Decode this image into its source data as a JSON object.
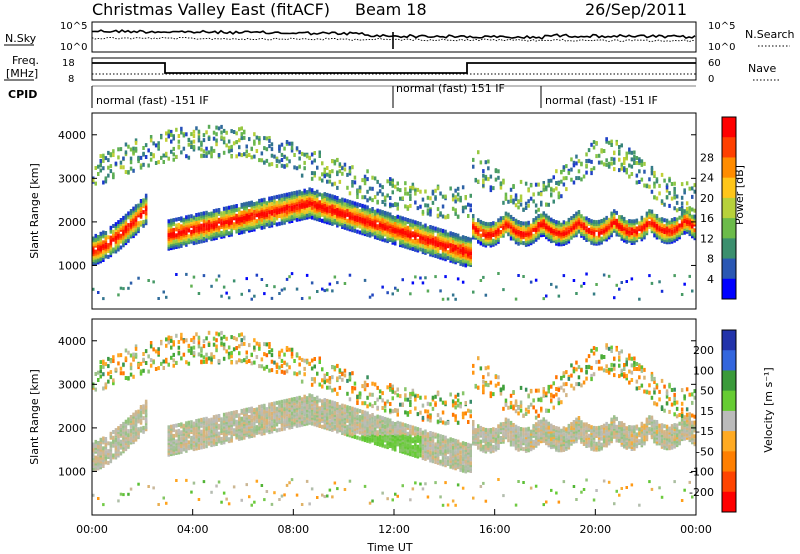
{
  "header": {
    "title": "Christmas Valley East (fitACF)",
    "beam": "Beam 18",
    "date": "26/Sep/2011"
  },
  "top_panel": {
    "nsky_label": "N.Sky",
    "nsearch_label": "N.Search",
    "ticks_left": [
      "10^5",
      "10^0"
    ],
    "ticks_right": [
      "10^5",
      "10^0"
    ],
    "freq_label_1": "Freq.",
    "freq_label_2": "[MHz]",
    "freq_ticks": [
      "18",
      "8"
    ],
    "nave_label": "Nave",
    "nave_ticks": [
      "60",
      "0"
    ],
    "cpid_label": "CPID",
    "cpid_segments": [
      {
        "label": "normal (fast) -151 IF"
      },
      {
        "label": "normal (fast) 151 IF"
      },
      {
        "label": "normal (fast) -151 IF"
      }
    ]
  },
  "chart_data": [
    {
      "type": "heatmap",
      "name": "power",
      "ylabel": "Slant Range [km]",
      "ylim": [
        0,
        4500
      ],
      "yticks": [
        "1000",
        "2000",
        "3000",
        "4000"
      ],
      "xlim": [
        0,
        24
      ],
      "colorbar": {
        "label": "Power [dB]",
        "ticks": [
          "4",
          "8",
          "12",
          "16",
          "20",
          "24",
          "28"
        ],
        "colors": [
          "#0000ff",
          "#2a57b3",
          "#3b8f6e",
          "#6cbb4a",
          "#b7d13b",
          "#ffc61a",
          "#ff8c00",
          "#ff4000",
          "#ff0000"
        ]
      },
      "bands": [
        {
          "x": [
            0,
            2.2
          ],
          "y_start": 1200,
          "y_end": 2500,
          "level": "strong"
        },
        {
          "x": [
            3.0,
            8.0
          ],
          "y_start": 1700,
          "y_end": 2600,
          "level": "strong"
        },
        {
          "x": [
            8.0,
            14.5
          ],
          "y_start": 2600,
          "y_end": 1300,
          "level": "medium"
        },
        {
          "x": [
            15.0,
            24.0
          ],
          "y_start": 1900,
          "y_end": 2100,
          "level": "strong"
        }
      ]
    },
    {
      "type": "heatmap",
      "name": "velocity",
      "ylabel": "Slant Range [km]",
      "xlabel": "Time UT",
      "ylim": [
        0,
        4500
      ],
      "yticks": [
        "1000",
        "2000",
        "3000",
        "4000"
      ],
      "xlim": [
        0,
        24
      ],
      "xticks": [
        "00:00",
        "04:00",
        "08:00",
        "12:00",
        "16:00",
        "20:00",
        "00:00"
      ],
      "colorbar": {
        "label": "Velocity [m s⁻¹]",
        "ticks": [
          "200",
          "100",
          "50",
          "15",
          "-15",
          "-50",
          "-100",
          "-200"
        ],
        "colors": [
          "#2233aa",
          "#3366dd",
          "#3a9a3a",
          "#66cc33",
          "#bbbbbb",
          "#ffaa22",
          "#ff7f00",
          "#ff4400",
          "#ff0000"
        ]
      }
    }
  ]
}
